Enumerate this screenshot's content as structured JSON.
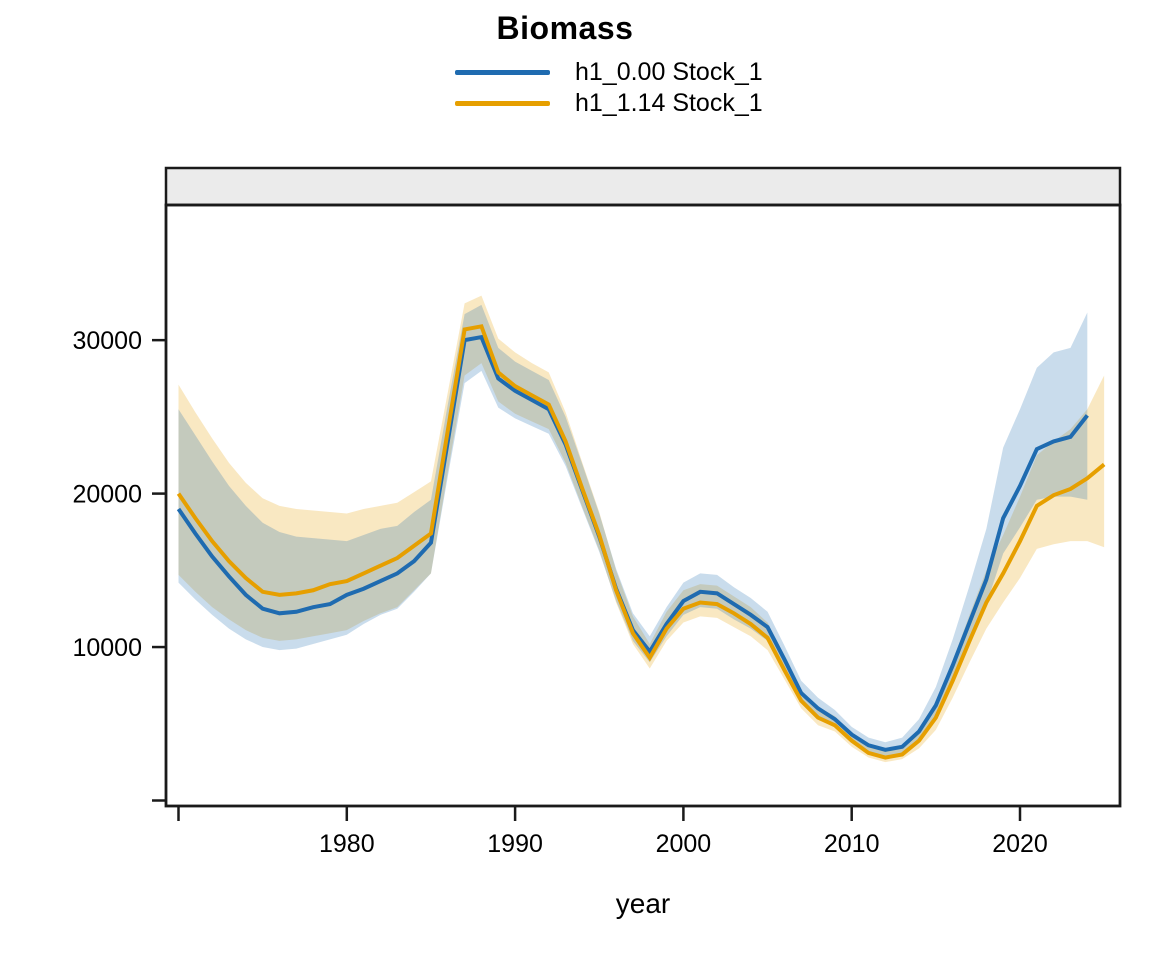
{
  "chart_data": {
    "type": "line",
    "title": "Biomass",
    "xlabel": "year",
    "ylabel": "",
    "strip_label": "",
    "legend_position": "top",
    "grid": false,
    "xlim": [
      1969.3,
      2025.9
    ],
    "ylim": [
      -350,
      38800
    ],
    "x_ticks": [
      {
        "value": 1970,
        "label": ""
      },
      {
        "value": 1980,
        "label": "1980"
      },
      {
        "value": 1990,
        "label": "1990"
      },
      {
        "value": 2000,
        "label": "2000"
      },
      {
        "value": 2010,
        "label": "2010"
      },
      {
        "value": 2020,
        "label": "2020"
      }
    ],
    "y_ticks": [
      {
        "value": 0,
        "label": ""
      },
      {
        "value": 10000,
        "label": "10000"
      },
      {
        "value": 20000,
        "label": "20000"
      },
      {
        "value": 30000,
        "label": "30000"
      }
    ],
    "colors": {
      "panel_border": "#1A1A1A",
      "strip_fill": "#EBEBEB",
      "tick": "#1A1A1A",
      "text": "#000000",
      "ribbon_opacity": 0.24
    },
    "series": [
      {
        "name": "h1_0.00 Stock_1",
        "color": "#1F6BB0",
        "years": {
          "start": 1970,
          "end": 2024
        },
        "values": [
          19000,
          17400,
          15900,
          14600,
          13400,
          12500,
          12200,
          12300,
          12600,
          12800,
          13400,
          13800,
          14300,
          14800,
          15600,
          16800,
          23400,
          30000,
          30200,
          27500,
          26700,
          26100,
          25500,
          23200,
          20200,
          17200,
          13800,
          11100,
          9700,
          11500,
          13000,
          13600,
          13500,
          12800,
          12100,
          11300,
          9200,
          7000,
          6000,
          5300,
          4300,
          3600,
          3300,
          3500,
          4500,
          6200,
          8800,
          11600,
          14400,
          18400,
          20500,
          22900,
          23400,
          23700,
          25100
        ],
        "lo": [
          14200,
          13100,
          12100,
          11200,
          10500,
          10000,
          9800,
          9900,
          10200,
          10500,
          10800,
          11500,
          12100,
          12500,
          13600,
          14800,
          21100,
          27200,
          28000,
          25600,
          24900,
          24400,
          23900,
          21800,
          19000,
          16200,
          13000,
          10400,
          9000,
          10700,
          12100,
          12600,
          12500,
          11800,
          11200,
          10400,
          8500,
          6400,
          5500,
          4800,
          3900,
          3200,
          2900,
          3100,
          4000,
          5500,
          7800,
          10300,
          12800,
          16100,
          17800,
          19600,
          19800,
          19800,
          19600
        ],
        "hi": [
          25500,
          23800,
          22100,
          20500,
          19200,
          18100,
          17500,
          17200,
          17100,
          17000,
          16900,
          17300,
          17700,
          17900,
          18800,
          19600,
          25800,
          31700,
          32300,
          29500,
          28600,
          28000,
          27400,
          25000,
          21900,
          18700,
          15100,
          12200,
          10700,
          12600,
          14200,
          14800,
          14700,
          13900,
          13200,
          12300,
          10100,
          7800,
          6700,
          5900,
          4800,
          4100,
          3800,
          4100,
          5300,
          7400,
          10500,
          14000,
          17700,
          23000,
          25500,
          28200,
          29200,
          29500,
          31800
        ]
      },
      {
        "name": "h1_1.14 Stock_1",
        "color": "#E69F00",
        "years": {
          "start": 1970,
          "end": 2025
        },
        "values": [
          20000,
          18400,
          16900,
          15600,
          14500,
          13600,
          13400,
          13500,
          13700,
          14100,
          14300,
          14800,
          15300,
          15800,
          16600,
          17400,
          24100,
          30700,
          30900,
          27900,
          27000,
          26400,
          25800,
          23400,
          20300,
          17300,
          13700,
          10900,
          9300,
          11200,
          12500,
          12900,
          12800,
          12200,
          11500,
          10600,
          8500,
          6500,
          5400,
          4900,
          3900,
          3100,
          2800,
          3000,
          3900,
          5400,
          7800,
          10400,
          12900,
          14800,
          16900,
          19200,
          19900,
          20300,
          21000,
          21900
        ],
        "lo": [
          14700,
          13600,
          12600,
          11800,
          11100,
          10600,
          10400,
          10500,
          10700,
          10900,
          11100,
          11700,
          12200,
          12600,
          13700,
          14800,
          21400,
          27700,
          28500,
          26000,
          25200,
          24700,
          24200,
          22000,
          19100,
          16300,
          12900,
          10200,
          8600,
          10400,
          11600,
          12000,
          11900,
          11300,
          10700,
          9800,
          7900,
          6000,
          4900,
          4500,
          3500,
          2800,
          2500,
          2700,
          3400,
          4600,
          6700,
          9000,
          11200,
          12900,
          14500,
          16400,
          16700,
          16900,
          16900,
          16500
        ],
        "hi": [
          27100,
          25300,
          23600,
          22000,
          20700,
          19700,
          19200,
          19000,
          18900,
          18800,
          18700,
          19000,
          19200,
          19400,
          20100,
          20800,
          26600,
          32400,
          32900,
          30100,
          29200,
          28500,
          27900,
          25300,
          22000,
          18800,
          15000,
          12000,
          10200,
          12300,
          13700,
          14100,
          14000,
          13300,
          12600,
          11600,
          9400,
          7200,
          6100,
          5500,
          4400,
          3600,
          3300,
          3500,
          4600,
          6300,
          9100,
          12100,
          15000,
          17300,
          19800,
          22500,
          23400,
          24200,
          25500,
          27700
        ]
      }
    ]
  }
}
